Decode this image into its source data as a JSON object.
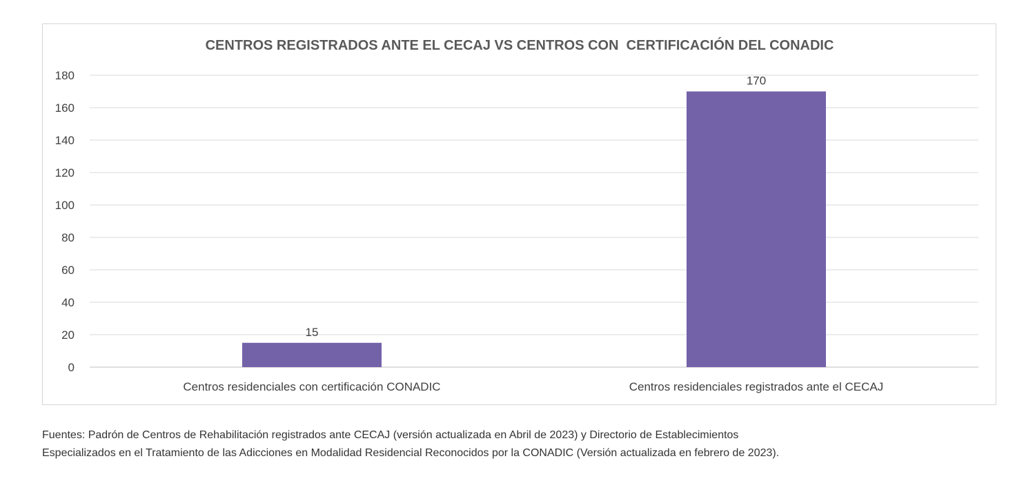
{
  "chart_data": {
    "type": "bar",
    "title": "CENTROS REGISTRADOS ANTE EL CECAJ VS CENTROS CON  CERTIFICACIÓN DEL CONADIC",
    "categories": [
      "Centros residenciales con certificación CONADIC",
      "Centros residenciales registrados ante el CECAJ"
    ],
    "values": [
      15,
      170
    ],
    "data_labels": [
      "15",
      "170"
    ],
    "ylim": [
      0,
      180
    ],
    "yticks": [
      0,
      20,
      40,
      60,
      80,
      100,
      120,
      140,
      160,
      180
    ],
    "xlabel": "",
    "ylabel": "",
    "grid": true,
    "legend": "none",
    "bar_color": "#7462a9"
  },
  "source": {
    "line1": "Fuentes: Padrón de Centros de Rehabilitación registrados ante CECAJ (versión actualizada en Abril de 2023)  y  Directorio de Establecimientos",
    "line2": "Especializados en el Tratamiento de las Adicciones en Modalidad Residencial Reconocidos por la CONADIC (Versión actualizada en febrero de 2023)."
  }
}
